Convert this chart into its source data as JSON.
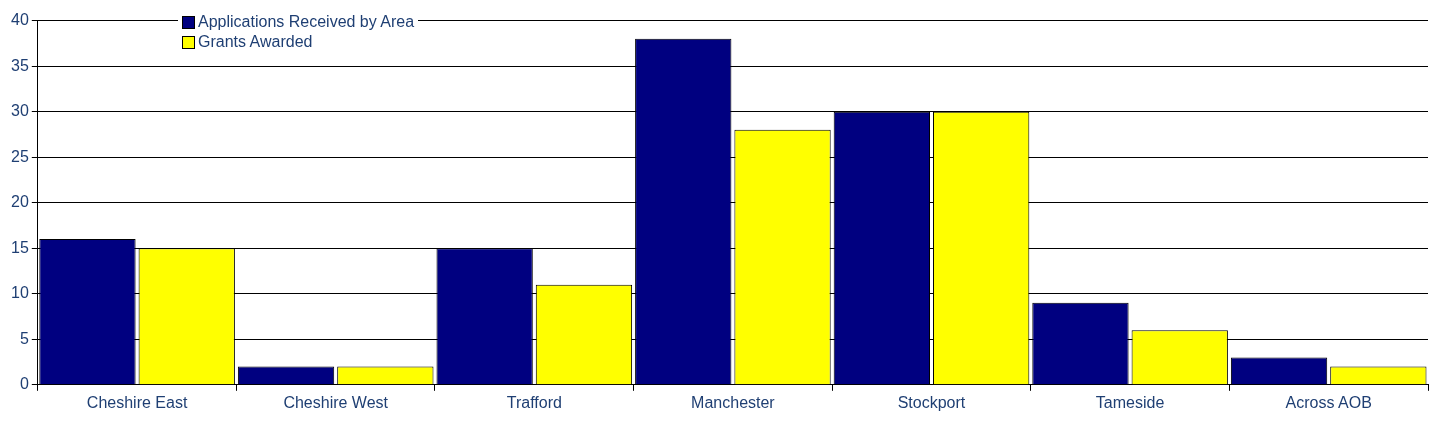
{
  "chart_data": {
    "type": "bar",
    "categories": [
      "Cheshire East",
      "Cheshire West",
      "Trafford",
      "Manchester",
      "Stockport",
      "Tameside",
      "Across AOB"
    ],
    "series": [
      {
        "name": "Applications Received by Area",
        "color": "#000080",
        "values": [
          16,
          2,
          15,
          38,
          30,
          9,
          3
        ]
      },
      {
        "name": "Grants Awarded",
        "color": "#ffff00",
        "values": [
          15,
          2,
          11,
          28,
          30,
          6,
          2
        ]
      }
    ],
    "ylim": [
      0,
      40
    ],
    "yticks": [
      0,
      5,
      10,
      15,
      20,
      25,
      30,
      35,
      40
    ],
    "grid": "y",
    "legend": "top left"
  }
}
